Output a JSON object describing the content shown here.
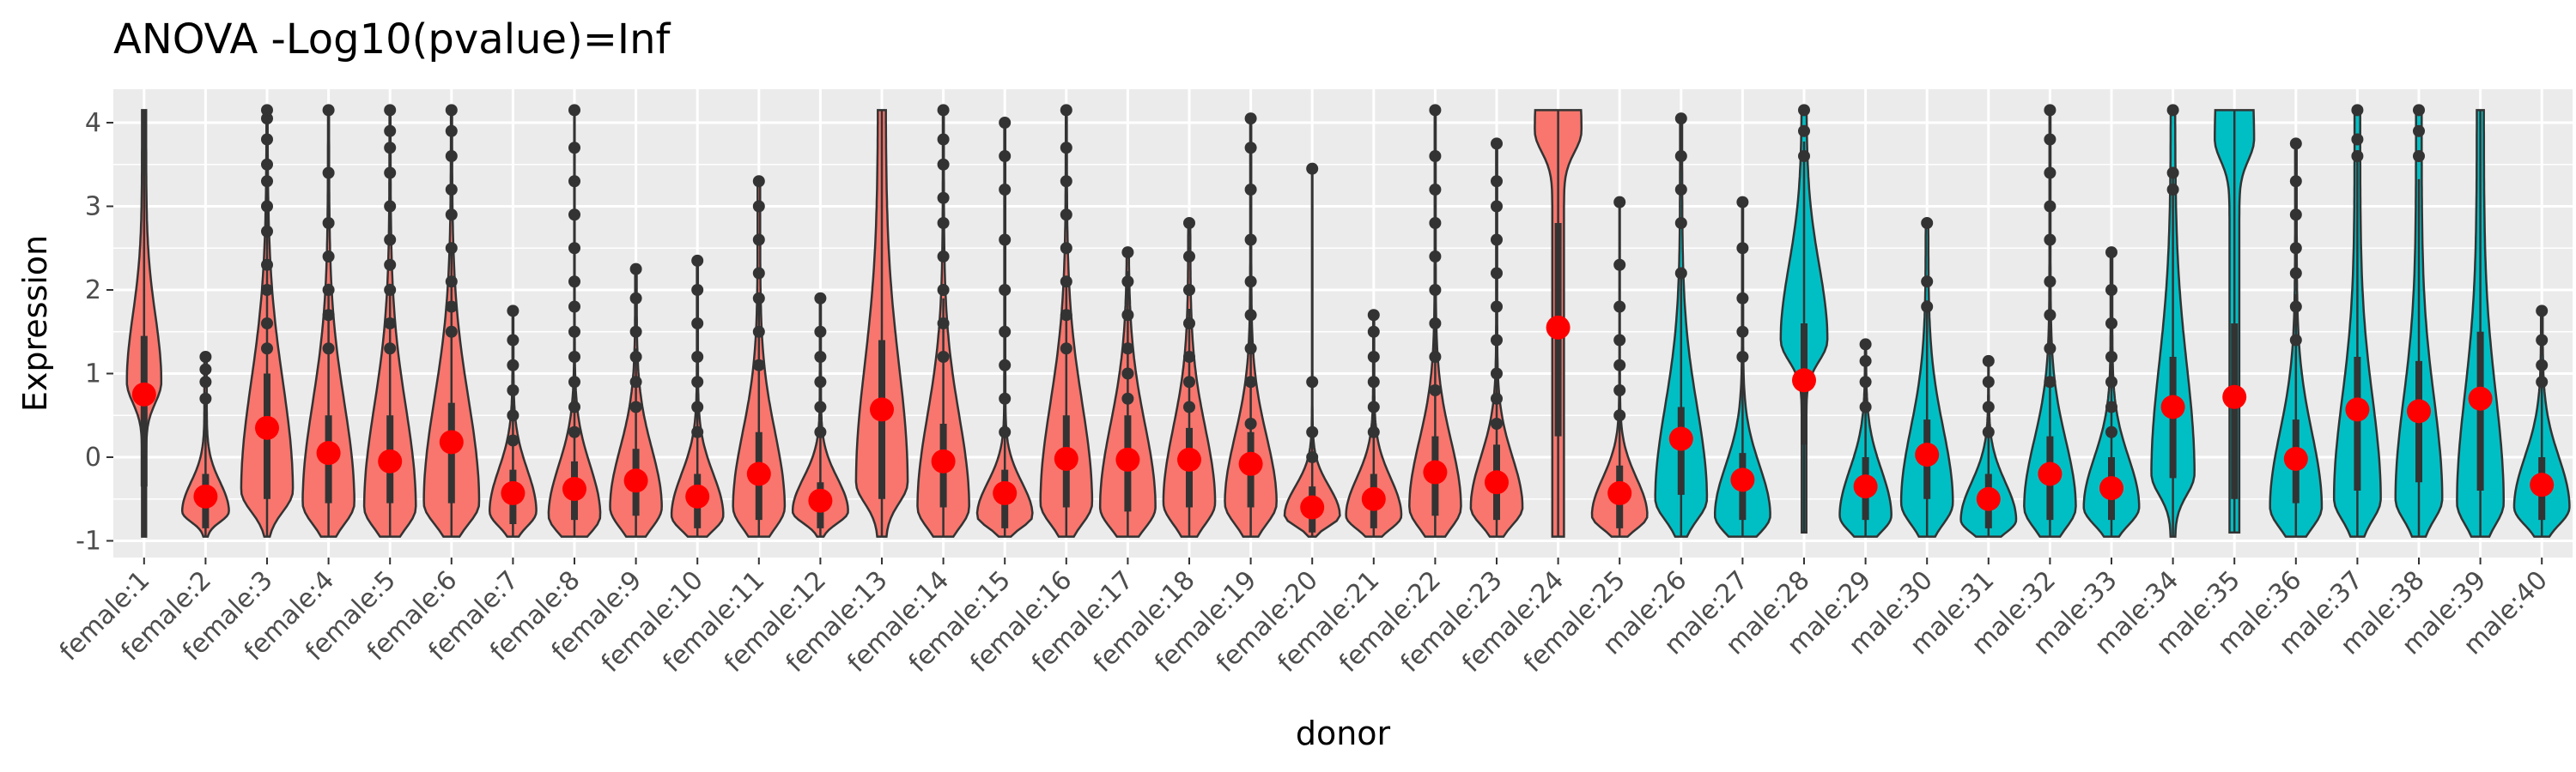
{
  "chart_data": {
    "type": "violin",
    "title": "ANOVA -Log10(pvalue)=Inf",
    "xlabel": "donor",
    "ylabel": "Expression",
    "ylim": [
      -1.2,
      4.4
    ],
    "yticks": [
      -1,
      0,
      1,
      2,
      3,
      4
    ],
    "ytick_labels": [
      "-1",
      "0",
      "1",
      "2",
      "3",
      "4"
    ],
    "grid": true,
    "legend": "none",
    "colors": {
      "female": "#F8766D",
      "male": "#00BFC4",
      "mean_point": "#FF0000",
      "panel_bg": "#EBEBEB",
      "grid": "#FFFFFF",
      "outline": "#333333"
    },
    "categories": [
      "female:1",
      "female:2",
      "female:3",
      "female:4",
      "female:5",
      "female:6",
      "female:7",
      "female:8",
      "female:9",
      "female:10",
      "female:11",
      "female:12",
      "female:13",
      "female:14",
      "female:15",
      "female:16",
      "female:17",
      "female:18",
      "female:19",
      "female:20",
      "female:21",
      "female:22",
      "female:23",
      "female:24",
      "female:25",
      "male:26",
      "male:27",
      "male:28",
      "male:29",
      "male:30",
      "male:31",
      "male:32",
      "male:33",
      "male:34",
      "male:35",
      "male:36",
      "male:37",
      "male:38",
      "male:39",
      "male:40"
    ],
    "groups": [
      "female",
      "female",
      "female",
      "female",
      "female",
      "female",
      "female",
      "female",
      "female",
      "female",
      "female",
      "female",
      "female",
      "female",
      "female",
      "female",
      "female",
      "female",
      "female",
      "female",
      "female",
      "female",
      "female",
      "female",
      "female",
      "male",
      "male",
      "male",
      "male",
      "male",
      "male",
      "male",
      "male",
      "male",
      "male",
      "male",
      "male",
      "male",
      "male",
      "male"
    ],
    "mean": [
      0.75,
      -0.47,
      0.35,
      0.05,
      -0.05,
      0.18,
      -0.43,
      -0.38,
      -0.28,
      -0.47,
      -0.2,
      -0.52,
      0.57,
      -0.05,
      -0.43,
      -0.02,
      -0.03,
      -0.03,
      -0.08,
      -0.6,
      -0.5,
      -0.18,
      -0.3,
      1.55,
      -0.43,
      0.22,
      -0.27,
      0.92,
      -0.35,
      0.03,
      -0.5,
      -0.2,
      -0.37,
      0.6,
      0.72,
      -0.02,
      0.57,
      0.55,
      0.7,
      -0.33
    ],
    "median": [
      0.7,
      -0.6,
      0.25,
      -0.1,
      -0.1,
      0.05,
      -0.55,
      -0.45,
      -0.35,
      -0.6,
      -0.35,
      -0.6,
      0.5,
      -0.2,
      -0.55,
      -0.15,
      -0.15,
      -0.15,
      -0.2,
      -0.7,
      -0.6,
      -0.3,
      -0.4,
      1.5,
      -0.6,
      0.1,
      -0.4,
      0.9,
      -0.45,
      -0.05,
      -0.6,
      -0.35,
      -0.45,
      0.5,
      0.6,
      -0.1,
      0.5,
      0.5,
      0.6,
      -0.45
    ],
    "q1": [
      -0.35,
      -0.85,
      -0.5,
      -0.55,
      -0.55,
      -0.55,
      -0.8,
      -0.75,
      -0.7,
      -0.85,
      -0.75,
      -0.85,
      -0.5,
      -0.6,
      -0.85,
      -0.6,
      -0.65,
      -0.6,
      -0.6,
      -0.9,
      -0.85,
      -0.7,
      -0.75,
      0.25,
      -0.85,
      -0.45,
      -0.75,
      0.15,
      -0.75,
      -0.5,
      -0.85,
      -0.75,
      -0.75,
      -0.25,
      -0.5,
      -0.55,
      -0.4,
      -0.3,
      -0.4,
      -0.75
    ],
    "q3": [
      1.45,
      -0.2,
      1.0,
      0.5,
      0.5,
      0.65,
      -0.15,
      -0.05,
      0.1,
      -0.2,
      0.3,
      -0.3,
      1.4,
      0.4,
      -0.15,
      0.5,
      0.5,
      0.35,
      0.3,
      -0.35,
      -0.2,
      0.25,
      0.15,
      2.8,
      -0.1,
      0.6,
      0.05,
      1.6,
      0.0,
      0.45,
      -0.2,
      0.25,
      0.0,
      1.2,
      1.6,
      0.45,
      1.2,
      1.15,
      1.5,
      0.0
    ],
    "min": [
      -0.95,
      -0.95,
      -0.95,
      -0.95,
      -0.95,
      -0.95,
      -0.95,
      -0.95,
      -0.95,
      -0.95,
      -0.95,
      -0.95,
      -0.95,
      -0.95,
      -0.95,
      -0.95,
      -0.95,
      -0.95,
      -0.95,
      -0.95,
      -0.95,
      -0.95,
      -0.95,
      -0.95,
      -0.95,
      -0.95,
      -0.95,
      -0.9,
      -0.95,
      -0.95,
      -0.95,
      -0.95,
      -0.95,
      -0.95,
      -0.9,
      -0.95,
      -0.95,
      -0.95,
      -0.95,
      -0.95
    ],
    "max": [
      4.15,
      1.2,
      4.15,
      4.15,
      4.15,
      4.15,
      1.75,
      4.15,
      2.25,
      2.35,
      3.3,
      1.9,
      4.15,
      4.15,
      4.0,
      4.15,
      2.45,
      2.8,
      4.05,
      3.45,
      1.7,
      4.15,
      3.75,
      4.15,
      3.05,
      4.05,
      3.05,
      4.15,
      1.35,
      2.8,
      1.15,
      4.15,
      2.45,
      4.15,
      4.15,
      3.75,
      4.15,
      4.15,
      4.15,
      1.75
    ],
    "max_width": [
      0.28,
      0.38,
      0.42,
      0.42,
      0.42,
      0.45,
      0.38,
      0.42,
      0.42,
      0.42,
      0.42,
      0.45,
      0.42,
      0.42,
      0.45,
      0.42,
      0.45,
      0.42,
      0.42,
      0.45,
      0.45,
      0.42,
      0.42,
      0.38,
      0.45,
      0.42,
      0.45,
      0.38,
      0.42,
      0.42,
      0.45,
      0.42,
      0.45,
      0.35,
      0.32,
      0.42,
      0.38,
      0.38,
      0.38,
      0.45
    ],
    "mode": [
      0.9,
      -0.65,
      -0.4,
      -0.55,
      -0.6,
      -0.55,
      -0.65,
      -0.7,
      -0.6,
      -0.7,
      -0.6,
      -0.65,
      -0.3,
      -0.6,
      -0.7,
      -0.55,
      -0.6,
      -0.55,
      -0.55,
      -0.7,
      -0.7,
      -0.6,
      -0.6,
      3.9,
      -0.7,
      -0.5,
      -0.7,
      1.4,
      -0.7,
      -0.55,
      -0.75,
      -0.6,
      -0.6,
      -0.2,
      3.8,
      -0.6,
      -0.5,
      -0.5,
      -0.55,
      -0.6
    ],
    "spread": [
      0.8,
      0.35,
      1.3,
      1.2,
      1.2,
      1.25,
      0.5,
      0.6,
      0.7,
      0.5,
      0.9,
      0.4,
      1.4,
      1.1,
      0.4,
      1.2,
      1.0,
      0.9,
      0.8,
      0.35,
      0.45,
      0.8,
      0.6,
      1.1,
      0.45,
      1.1,
      0.6,
      0.9,
      0.55,
      0.9,
      0.45,
      0.8,
      0.6,
      1.3,
      1.3,
      0.9,
      1.2,
      1.2,
      1.3,
      0.6
    ],
    "tail": [
      0.12,
      0.05,
      0.02,
      0.02,
      0.02,
      0.02,
      0.02,
      0.01,
      0.03,
      0.02,
      0.05,
      0.02,
      0.15,
      0.02,
      0.02,
      0.02,
      0.03,
      0.04,
      0.02,
      0.01,
      0.02,
      0.02,
      0.02,
      0.25,
      0.01,
      0.04,
      0.02,
      0.1,
      0.02,
      0.05,
      0.01,
      0.02,
      0.03,
      0.1,
      0.25,
      0.03,
      0.12,
      0.12,
      0.15,
      0.03
    ],
    "outliers": [
      [],
      [
        0.7,
        0.9,
        1.05,
        1.2
      ],
      [
        1.3,
        1.6,
        2.0,
        2.3,
        2.7,
        3.0,
        3.3,
        3.5,
        3.8,
        4.05,
        4.15
      ],
      [
        1.3,
        1.7,
        2.0,
        2.4,
        2.8,
        3.4,
        4.15
      ],
      [
        1.3,
        1.6,
        2.0,
        2.3,
        2.6,
        3.0,
        3.4,
        3.7,
        3.9,
        4.15
      ],
      [
        1.5,
        1.8,
        2.1,
        2.5,
        2.9,
        3.2,
        3.6,
        3.9,
        4.15
      ],
      [
        0.2,
        0.5,
        0.8,
        1.1,
        1.4,
        1.75
      ],
      [
        0.3,
        0.6,
        0.9,
        1.2,
        1.5,
        1.8,
        2.1,
        2.5,
        2.9,
        3.3,
        3.7,
        4.15
      ],
      [
        0.6,
        0.9,
        1.2,
        1.5,
        1.9,
        2.25
      ],
      [
        0.3,
        0.6,
        0.9,
        1.2,
        1.6,
        2.0,
        2.35
      ],
      [
        1.1,
        1.5,
        1.9,
        2.2,
        2.6,
        3.0,
        3.3
      ],
      [
        0.3,
        0.6,
        0.9,
        1.2,
        1.5,
        1.9
      ],
      [],
      [
        1.2,
        1.6,
        2.0,
        2.4,
        2.8,
        3.1,
        3.5,
        3.8,
        4.15
      ],
      [
        0.3,
        0.7,
        1.1,
        1.5,
        2.0,
        2.6,
        3.2,
        3.6,
        4.0
      ],
      [
        1.3,
        1.7,
        2.1,
        2.5,
        2.9,
        3.3,
        3.7,
        4.15
      ],
      [
        0.7,
        1.0,
        1.3,
        1.7,
        2.1,
        2.45
      ],
      [
        0.6,
        0.9,
        1.2,
        1.6,
        2.0,
        2.4,
        2.8
      ],
      [
        0.4,
        0.9,
        1.3,
        1.7,
        2.1,
        2.6,
        3.2,
        3.7,
        4.05
      ],
      [
        0.0,
        0.3,
        0.9,
        3.45
      ],
      [
        0.3,
        0.6,
        0.9,
        1.2,
        1.5,
        1.7
      ],
      [
        0.8,
        1.2,
        1.6,
        2.0,
        2.4,
        2.8,
        3.2,
        3.6,
        4.15
      ],
      [
        0.4,
        0.7,
        1.0,
        1.4,
        1.8,
        2.2,
        2.6,
        3.0,
        3.3,
        3.75
      ],
      [],
      [
        0.5,
        0.8,
        1.1,
        1.4,
        1.8,
        2.3,
        3.05
      ],
      [
        2.2,
        2.8,
        3.2,
        3.6,
        4.05
      ],
      [
        1.2,
        1.5,
        1.9,
        2.5,
        3.05
      ],
      [
        3.6,
        3.9,
        4.15
      ],
      [
        0.6,
        0.9,
        1.15,
        1.35
      ],
      [
        1.8,
        2.1,
        2.8
      ],
      [
        0.3,
        0.6,
        0.9,
        1.15
      ],
      [
        0.9,
        1.3,
        1.7,
        2.1,
        2.6,
        3.0,
        3.4,
        3.8,
        4.15
      ],
      [
        0.3,
        0.6,
        0.9,
        1.2,
        1.6,
        2.0,
        2.45
      ],
      [
        3.2,
        3.4,
        4.15
      ],
      [],
      [
        1.4,
        1.8,
        2.2,
        2.5,
        2.9,
        3.3,
        3.75
      ],
      [
        3.6,
        3.8,
        4.15
      ],
      [
        3.6,
        3.9,
        4.15
      ],
      [],
      [
        0.9,
        1.1,
        1.4,
        1.75
      ]
    ]
  }
}
